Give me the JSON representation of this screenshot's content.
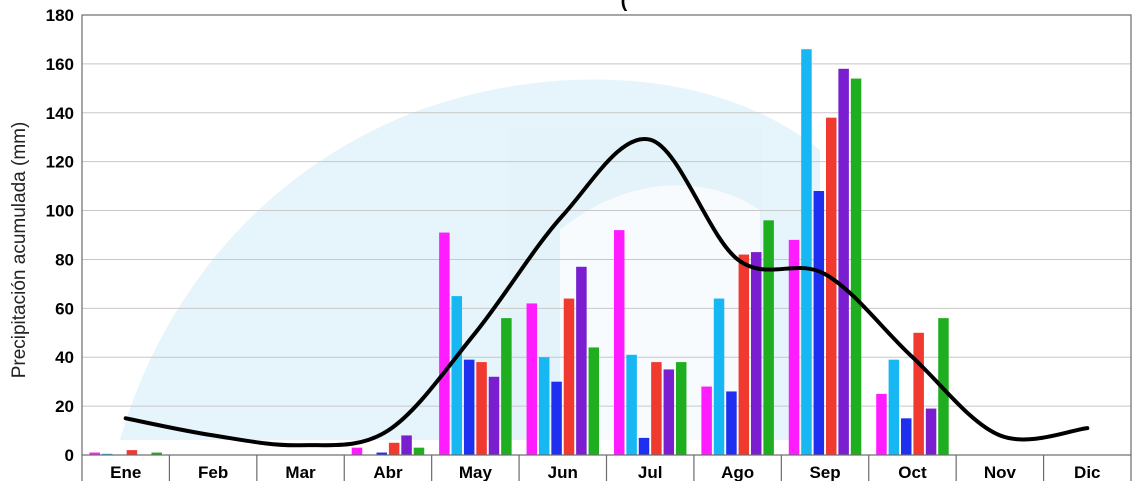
{
  "chart_data": {
    "type": "bar",
    "title": "(",
    "ylabel": "Precipitación acumulada (mm)",
    "xlabel": "",
    "ylim": [
      0,
      180
    ],
    "yticks": [
      0,
      20,
      40,
      60,
      80,
      100,
      120,
      140,
      160,
      180
    ],
    "grid": true,
    "legend": "none",
    "categories": [
      "Ene",
      "Feb",
      "Mar",
      "Abr",
      "May",
      "Jun",
      "Jul",
      "Ago",
      "Sep",
      "Oct",
      "Nov",
      "Dic"
    ],
    "series_colors": [
      "#ff1cff",
      "#16b7f2",
      "#1f2ff0",
      "#f0392f",
      "#7a1ed0",
      "#1fae1f"
    ],
    "series": [
      {
        "values": [
          1,
          0,
          0,
          3,
          91,
          62,
          92,
          28,
          88,
          25,
          0,
          0
        ]
      },
      {
        "values": [
          0.5,
          0,
          0,
          0,
          65,
          40,
          41,
          64,
          166,
          39,
          0,
          0
        ]
      },
      {
        "values": [
          0,
          0,
          0,
          1,
          39,
          30,
          7,
          26,
          108,
          15,
          0,
          0
        ]
      },
      {
        "values": [
          2,
          0,
          0,
          5,
          38,
          64,
          38,
          82,
          138,
          50,
          0,
          0
        ]
      },
      {
        "values": [
          0,
          0,
          0,
          8,
          32,
          77,
          35,
          83,
          158,
          19,
          0,
          0
        ]
      },
      {
        "values": [
          1,
          0,
          0,
          3,
          56,
          44,
          38,
          96,
          154,
          56,
          0,
          0
        ]
      }
    ],
    "line": {
      "color": "#000000",
      "values": [
        15,
        8,
        4,
        10,
        50,
        98,
        129,
        80,
        74,
        40,
        8,
        11
      ]
    }
  }
}
